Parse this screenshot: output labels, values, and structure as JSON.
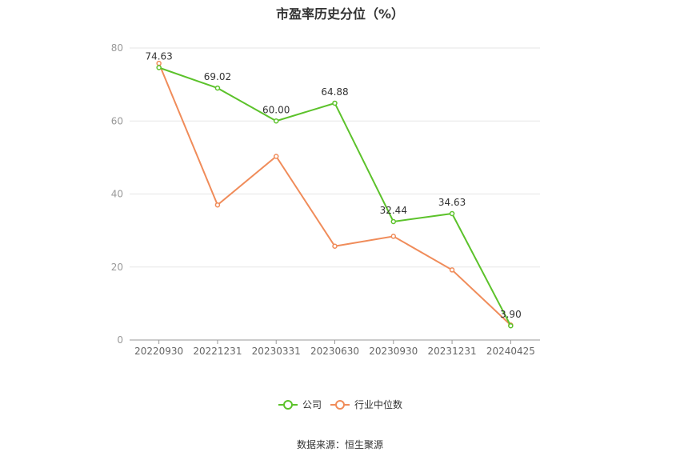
{
  "chart_data": {
    "type": "line",
    "title": "市盈率历史分位（%）",
    "categories": [
      "20220930",
      "20221231",
      "20230331",
      "20230630",
      "20230930",
      "20231231",
      "20240425"
    ],
    "series": [
      {
        "name": "公司",
        "color": "#5cc22b",
        "values": [
          74.63,
          69.02,
          60.0,
          64.88,
          32.44,
          34.63,
          3.9
        ],
        "labels": [
          "74.63",
          "69.02",
          "60.00",
          "64.88",
          "32.44",
          "34.63",
          "3.90"
        ]
      },
      {
        "name": "行业中位数",
        "color": "#f08c5a",
        "values": [
          75.8,
          37.0,
          50.3,
          25.7,
          28.4,
          19.2,
          4.1
        ]
      }
    ],
    "yticks": [
      "0",
      "20",
      "40",
      "60",
      "80"
    ],
    "ylim": [
      0,
      80
    ],
    "grid": true,
    "legend": "bottom-center",
    "xlabel": "",
    "ylabel": ""
  },
  "source": "数据来源：恒生聚源"
}
